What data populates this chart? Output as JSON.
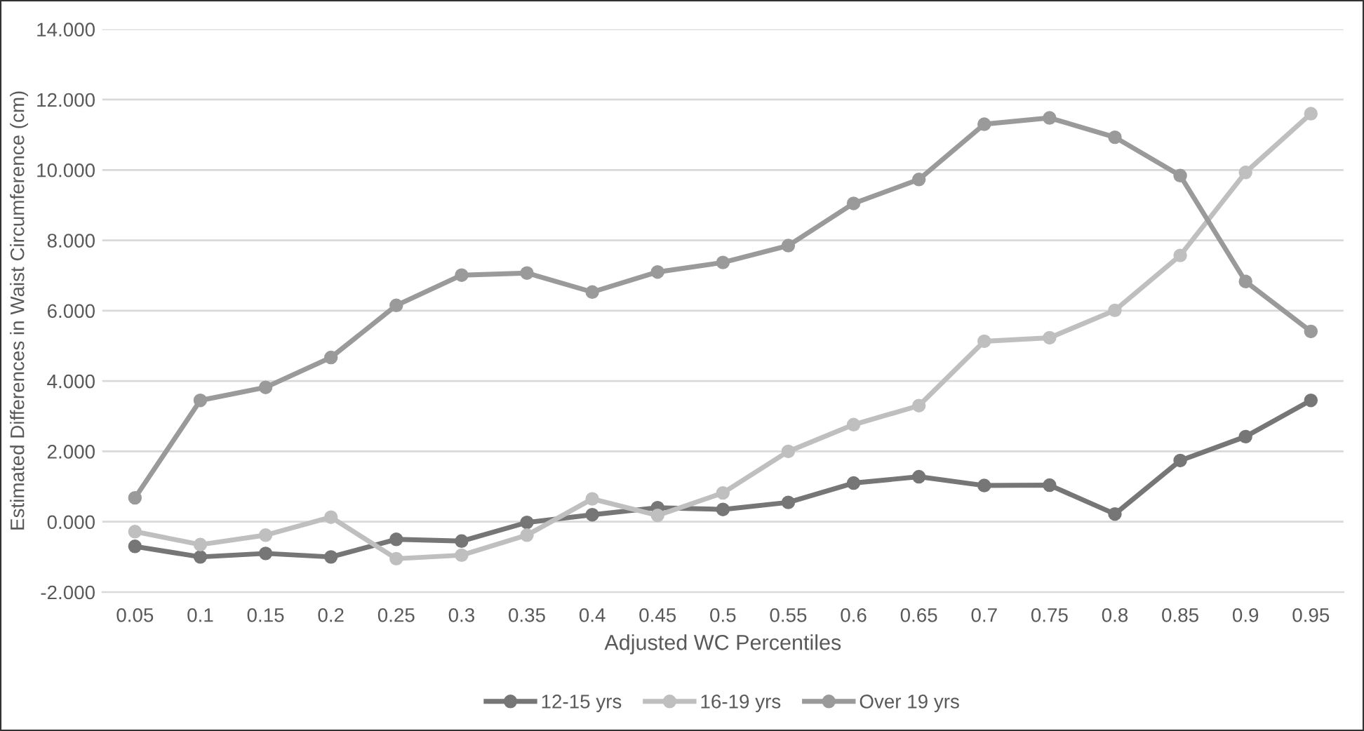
{
  "chart_data": {
    "type": "line",
    "xlabel": "Adjusted WC Percentiles",
    "ylabel": "Estimated Differences in Waist Circumference (cm)",
    "categories": [
      "0.05",
      "0.1",
      "0.15",
      "0.2",
      "0.25",
      "0.3",
      "0.35",
      "0.4",
      "0.45",
      "0.5",
      "0.55",
      "0.6",
      "0.65",
      "0.7",
      "0.75",
      "0.8",
      "0.85",
      "0.9",
      "0.95"
    ],
    "series": [
      {
        "name": "12-15 yrs",
        "color": "#767676",
        "values": [
          -0.7,
          -1.0,
          -0.9,
          -1.0,
          -0.5,
          -0.55,
          -0.02,
          0.2,
          0.4,
          0.35,
          0.55,
          1.1,
          1.28,
          1.03,
          1.04,
          0.22,
          1.74,
          2.42,
          3.45
        ]
      },
      {
        "name": "16-19 yrs",
        "color": "#bfbfbf",
        "values": [
          -0.28,
          -0.65,
          -0.38,
          0.13,
          -1.05,
          -0.95,
          -0.38,
          0.65,
          0.18,
          0.82,
          2.0,
          2.76,
          3.3,
          5.13,
          5.23,
          6.01,
          7.57,
          9.93,
          11.6
        ]
      },
      {
        "name": "Over 19 yrs",
        "color": "#9a9a9a",
        "values": [
          0.68,
          3.45,
          3.82,
          4.67,
          6.15,
          7.01,
          7.07,
          6.53,
          7.1,
          7.37,
          7.85,
          9.05,
          9.73,
          11.3,
          11.48,
          10.93,
          9.84,
          6.83,
          5.41
        ]
      }
    ],
    "ylim": [
      -2,
      14
    ],
    "yticks": [
      {
        "value": -2,
        "label": "-2.000"
      },
      {
        "value": 0,
        "label": "0.000"
      },
      {
        "value": 2,
        "label": "2.000"
      },
      {
        "value": 4,
        "label": "4.000"
      },
      {
        "value": 6,
        "label": "6.000"
      },
      {
        "value": 8,
        "label": "8.000"
      },
      {
        "value": 10,
        "label": "10.000"
      },
      {
        "value": 12,
        "label": "12.000"
      },
      {
        "value": 14,
        "label": "14.000"
      }
    ],
    "grid": "y",
    "legend": "bottom",
    "marker": "circle",
    "line_style": "solid"
  }
}
